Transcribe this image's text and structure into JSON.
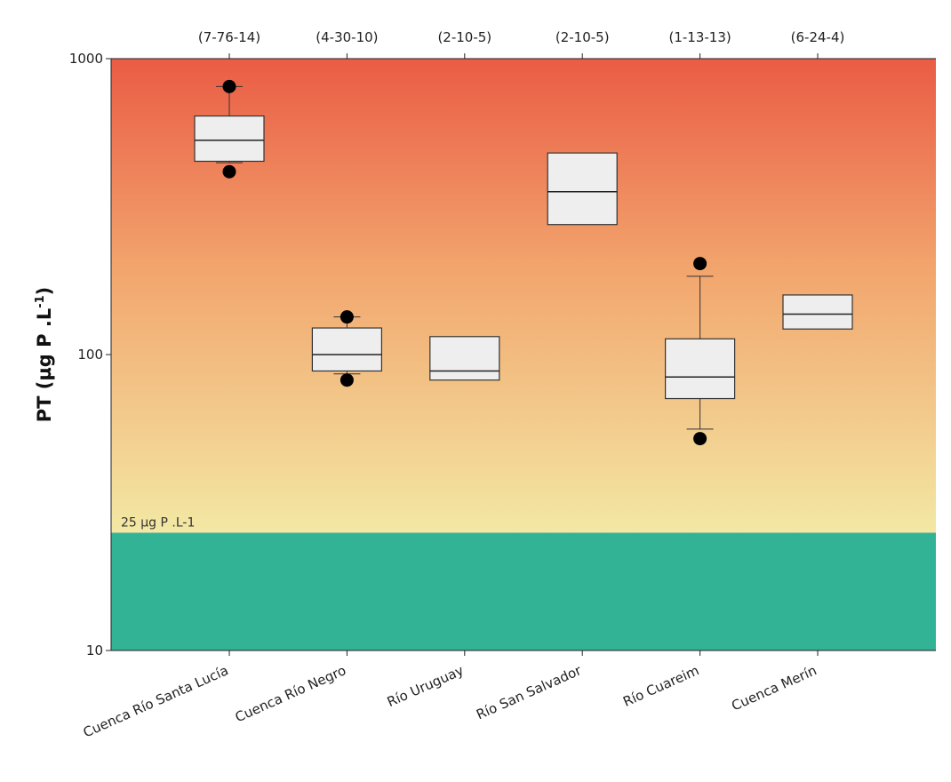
{
  "chart_data": {
    "type": "box",
    "ylabel": "PT (µg P .L",
    "ylabel_sup": "-1",
    "ylabel_end": ")",
    "yscale": "log",
    "ylim": [
      10,
      1000
    ],
    "yticks": [
      {
        "value": 1000,
        "label": "1000"
      },
      {
        "value": 100,
        "label": "100"
      },
      {
        "value": 10,
        "label": "10"
      }
    ],
    "threshold": {
      "value": 25,
      "label": "25 µg P .L-1"
    },
    "colors": {
      "below_threshold": "#33b395",
      "gradient_top": "#ea5c45",
      "gradient_mid": "#f2a66e",
      "gradient_bottom": "#f3e8a4",
      "box_fill": "#eeeeee",
      "box_stroke": "#333333"
    },
    "categories": [
      {
        "name": "Cuenca Río Santa Lucía",
        "counts": "(7-76-14)",
        "whisker_low": 445,
        "q1": 450,
        "median": 530,
        "q3": 640,
        "whisker_high": 805,
        "outliers": [
          805,
          415
        ]
      },
      {
        "name": "Cuenca Río Negro",
        "counts": "(4-30-10)",
        "whisker_low": 86,
        "q1": 88,
        "median": 100,
        "q3": 123,
        "whisker_high": 134,
        "outliers": [
          134,
          82
        ]
      },
      {
        "name": "Río Uruguay",
        "counts": "(2-10-5)",
        "whisker_low": 82,
        "q1": 82,
        "median": 88,
        "q3": 115,
        "whisker_high": 115,
        "outliers": []
      },
      {
        "name": "Río San Salvador",
        "counts": "(2-10-5)",
        "whisker_low": 275,
        "q1": 275,
        "median": 355,
        "q3": 480,
        "whisker_high": 480,
        "outliers": []
      },
      {
        "name": "Río Cuareim",
        "counts": "(1-13-13)",
        "whisker_low": 56,
        "q1": 71,
        "median": 84,
        "q3": 113,
        "whisker_high": 184,
        "outliers": [
          203,
          52
        ]
      },
      {
        "name": "Cuenca Merín",
        "counts": "(6-24-4)",
        "whisker_low": 122,
        "q1": 122,
        "median": 137,
        "q3": 159,
        "whisker_high": 159,
        "outliers": []
      }
    ]
  }
}
